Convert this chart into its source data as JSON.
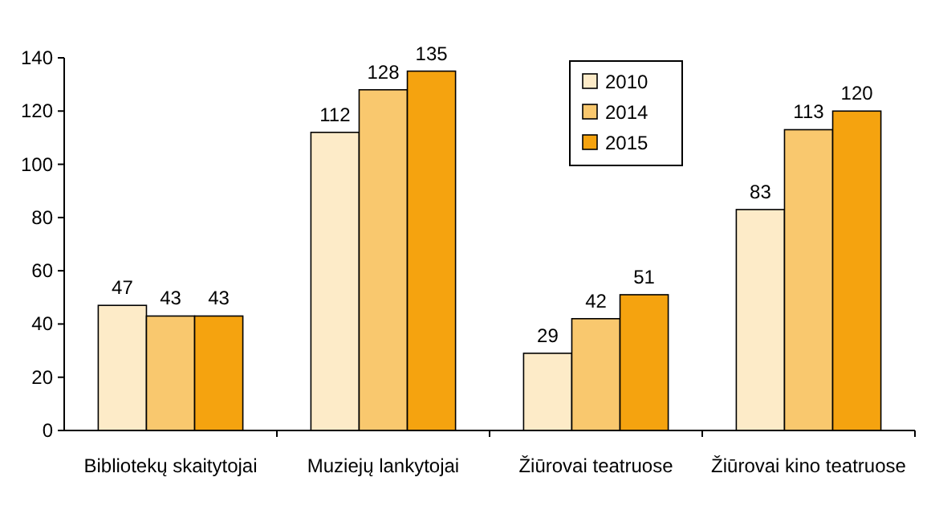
{
  "chart_data": {
    "type": "bar",
    "categories": [
      "Bibliotekų skaitytojai",
      "Muziejų lankytojai",
      "Žiūrovai teatruose",
      "Žiūrovai kino teatruose"
    ],
    "series": [
      {
        "name": "2010",
        "color": "#fdebc8",
        "values": [
          47,
          112,
          29,
          83
        ]
      },
      {
        "name": "2014",
        "color": "#f9c86e",
        "values": [
          43,
          128,
          42,
          113
        ]
      },
      {
        "name": "2015",
        "color": "#f5a30f",
        "values": [
          43,
          135,
          51,
          120
        ]
      }
    ],
    "ylim": [
      0,
      140
    ],
    "yticks": [
      0,
      20,
      40,
      60,
      80,
      100,
      120,
      140
    ],
    "data_labels": true,
    "legend": "top",
    "grid": false
  }
}
